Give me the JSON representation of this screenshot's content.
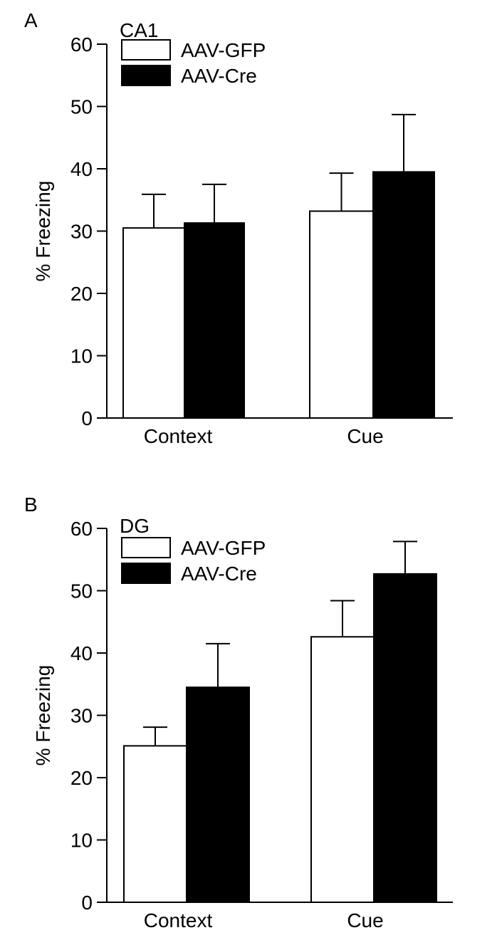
{
  "chart_data": [
    {
      "type": "bar",
      "panel": "A",
      "title": "CA1",
      "xlabel": "",
      "ylabel": "% Freezing",
      "ylim": [
        0,
        60
      ],
      "yticks": [
        0,
        10,
        20,
        30,
        40,
        50,
        60
      ],
      "categories": [
        "Context",
        "Cue"
      ],
      "series": [
        {
          "name": "AAV-GFP",
          "color": "#ffffff",
          "values": [
            30.5,
            33.2
          ],
          "errors": [
            5.4,
            6.1
          ]
        },
        {
          "name": "AAV-Cre",
          "color": "#000000",
          "values": [
            31.3,
            39.5
          ],
          "errors": [
            6.2,
            9.2
          ]
        }
      ],
      "legend": "top-left",
      "grid": false
    },
    {
      "type": "bar",
      "panel": "B",
      "title": "DG",
      "xlabel": "",
      "ylabel": "% Freezing",
      "ylim": [
        0,
        60
      ],
      "yticks": [
        0,
        10,
        20,
        30,
        40,
        50,
        60
      ],
      "categories": [
        "Context",
        "Cue"
      ],
      "series": [
        {
          "name": "AAV-GFP",
          "color": "#ffffff",
          "values": [
            25.1,
            42.6
          ],
          "errors": [
            3.0,
            5.8
          ]
        },
        {
          "name": "AAV-Cre",
          "color": "#000000",
          "values": [
            34.5,
            52.7
          ],
          "errors": [
            7.0,
            5.2
          ]
        }
      ],
      "legend": "top-left",
      "grid": false
    }
  ]
}
